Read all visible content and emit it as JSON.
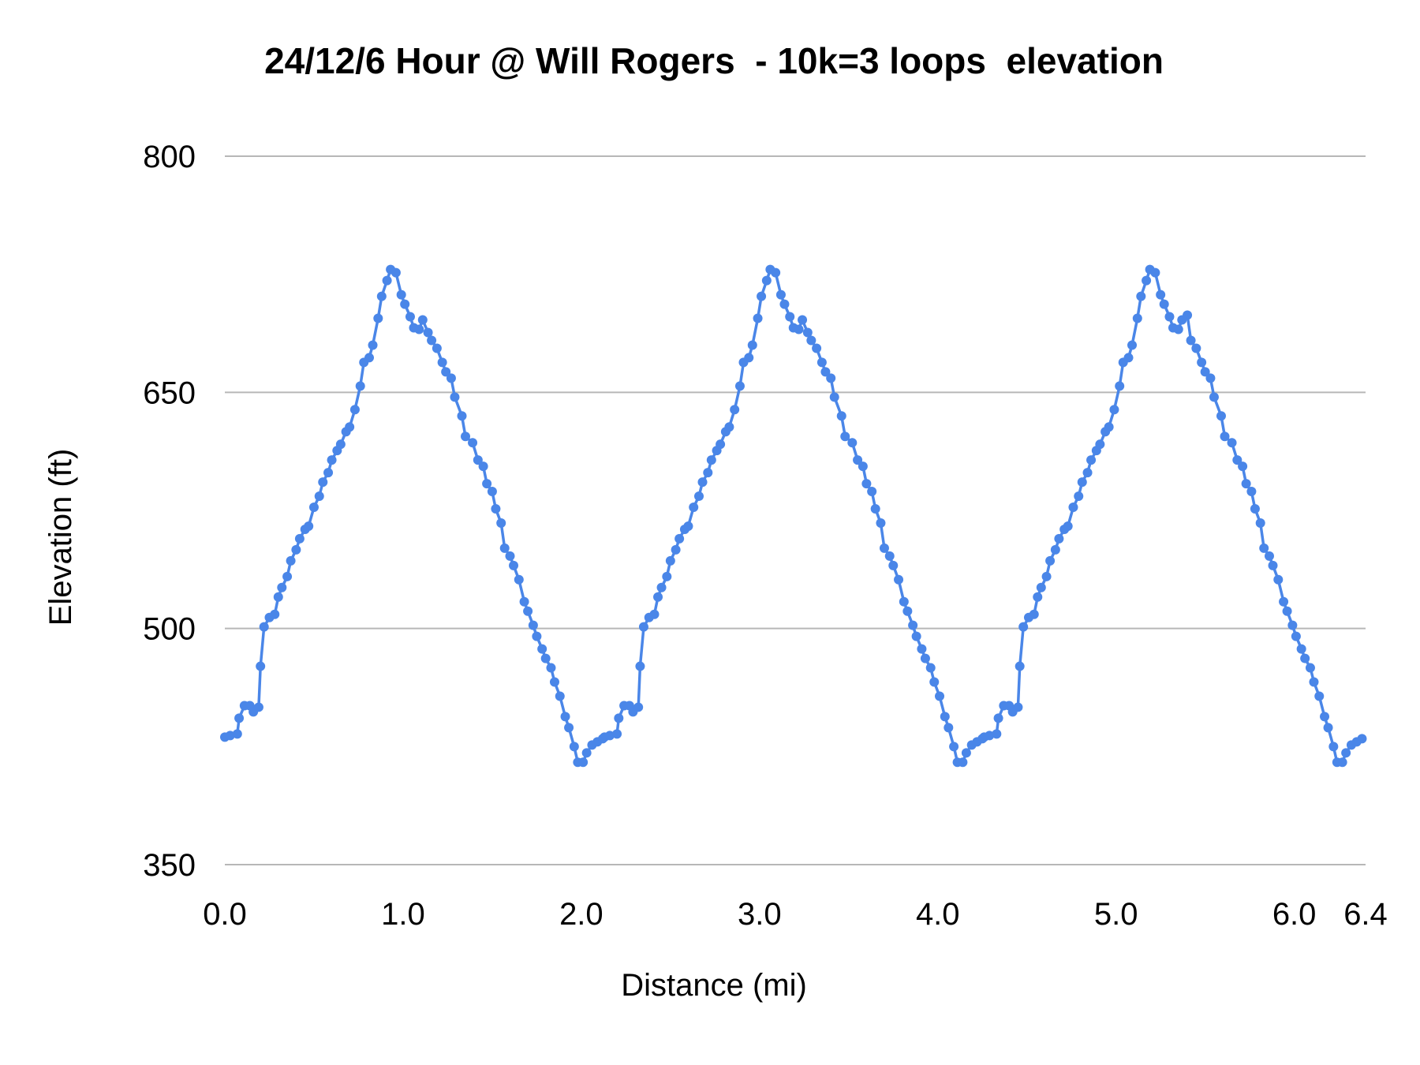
{
  "chart_data": {
    "type": "line",
    "title": "24/12/6 Hour @ Will Rogers  - 10k=3 loops  elevation",
    "xlabel": "Distance (mi)",
    "ylabel": "Elevation (ft)",
    "xlim": [
      0,
      6.4
    ],
    "ylim": [
      350,
      800
    ],
    "x_ticks": [
      "0.0",
      "1.0",
      "2.0",
      "3.0",
      "4.0",
      "5.0",
      "6.0",
      "6.4"
    ],
    "x_tick_values": [
      0,
      1,
      2,
      3,
      4,
      5,
      6,
      6.4
    ],
    "y_ticks": [
      "350",
      "500",
      "650",
      "800"
    ],
    "y_tick_values": [
      350,
      500,
      650,
      800
    ],
    "grid": "horizontal",
    "legend": "none",
    "markers": true,
    "color": "#4a86e8",
    "series": [
      {
        "x": [
          0,
          0.03,
          0.07,
          0.08,
          0.11,
          0.14,
          0.16,
          0.19,
          0.2,
          0.22,
          0.25,
          0.28,
          0.3,
          0.32,
          0.35,
          0.37,
          0.4,
          0.42,
          0.45,
          0.47,
          0.5,
          0.53,
          0.55,
          0.58,
          0.6,
          0.63,
          0.65,
          0.68,
          0.7,
          0.73,
          0.76,
          0.78,
          0.81,
          0.83,
          0.86,
          0.88,
          0.91,
          0.93,
          0.96,
          0.99,
          1.01,
          1.04,
          1.06,
          1.09,
          1.11,
          1.14,
          1.16,
          1.19,
          1.22,
          1.24,
          1.27,
          1.29,
          1.33,
          1.35,
          1.39,
          1.42,
          1.45,
          1.47,
          1.5,
          1.52,
          1.55,
          1.57,
          1.6,
          1.62,
          1.65,
          1.68,
          1.7,
          1.73,
          1.75,
          1.78,
          1.8,
          1.83,
          1.85,
          1.88,
          1.91,
          1.93,
          1.96,
          1.98,
          2.01,
          2.03,
          2.06,
          2.09,
          2.12,
          2.13,
          2.16,
          2.2,
          2.21,
          2.24,
          2.27,
          2.29,
          2.32,
          2.33,
          2.35,
          2.38,
          2.41,
          2.43,
          2.45,
          2.48,
          2.5,
          2.53,
          2.55,
          2.58,
          2.6,
          2.63,
          2.66,
          2.68,
          2.71,
          2.73,
          2.76,
          2.78,
          2.81,
          2.83,
          2.86,
          2.89,
          2.91,
          2.94,
          2.96,
          2.99,
          3.01,
          3.04,
          3.06,
          3.09,
          3.12,
          3.14,
          3.17,
          3.19,
          3.22,
          3.24,
          3.27,
          3.29,
          3.32,
          3.35,
          3.37,
          3.4,
          3.42,
          3.46,
          3.48,
          3.52,
          3.55,
          3.58,
          3.6,
          3.63,
          3.65,
          3.68,
          3.7,
          3.73,
          3.75,
          3.78,
          3.81,
          3.83,
          3.86,
          3.88,
          3.91,
          3.93,
          3.96,
          3.98,
          4.01,
          4.04,
          4.06,
          4.09,
          4.11,
          4.14,
          4.16,
          4.19,
          4.22,
          4.25,
          4.26,
          4.29,
          4.33,
          4.34,
          4.37,
          4.4,
          4.42,
          4.45,
          4.46,
          4.48,
          4.51,
          4.54,
          4.56,
          4.58,
          4.61,
          4.63,
          4.66,
          4.68,
          4.71,
          4.73,
          4.76,
          4.79,
          4.81,
          4.84,
          4.86,
          4.89,
          4.91,
          4.94,
          4.96,
          4.99,
          5.02,
          5.04,
          5.07,
          5.09,
          5.12,
          5.14,
          5.17,
          5.19,
          5.22,
          5.25,
          5.27,
          5.3,
          5.32,
          5.35,
          5.37,
          5.4,
          5.42,
          5.45,
          5.48,
          5.5,
          5.53,
          5.55,
          5.59,
          5.61,
          5.65,
          5.68,
          5.71,
          5.73,
          5.76,
          5.78,
          5.81,
          5.83,
          5.86,
          5.88,
          5.91,
          5.94,
          5.96,
          5.99,
          6.01,
          6.04,
          6.06,
          6.09,
          6.11,
          6.14,
          6.17,
          6.19,
          6.22,
          6.24,
          6.27,
          6.29,
          6.32,
          6.35,
          6.38
        ],
        "y": [
          431,
          432,
          433,
          443,
          451,
          451,
          447,
          450,
          476,
          501,
          507,
          509,
          520,
          526,
          533,
          543,
          550,
          557,
          563,
          565,
          577,
          584,
          593,
          599,
          607,
          613,
          617,
          625,
          628,
          639,
          654,
          669,
          672,
          680,
          697,
          711,
          721,
          728,
          726,
          712,
          706,
          698,
          691,
          690,
          696,
          688,
          683,
          678,
          669,
          663,
          659,
          647,
          635,
          622,
          618,
          607,
          603,
          592,
          587,
          576,
          567,
          551,
          546,
          540,
          531,
          517,
          511,
          502,
          495,
          487,
          481,
          475,
          466,
          457,
          444,
          437,
          425,
          415,
          415,
          421,
          426,
          428,
          430,
          431,
          432,
          433,
          443,
          451,
          451,
          447,
          450,
          476,
          501,
          507,
          509,
          520,
          526,
          533,
          543,
          550,
          557,
          563,
          565,
          577,
          584,
          593,
          599,
          607,
          613,
          617,
          625,
          628,
          639,
          654,
          669,
          672,
          680,
          697,
          711,
          721,
          728,
          726,
          712,
          706,
          698,
          691,
          690,
          696,
          688,
          683,
          678,
          669,
          663,
          659,
          647,
          635,
          622,
          618,
          607,
          603,
          592,
          587,
          576,
          567,
          551,
          546,
          540,
          531,
          517,
          511,
          502,
          495,
          487,
          481,
          475,
          466,
          457,
          444,
          437,
          425,
          415,
          415,
          421,
          426,
          428,
          430,
          431,
          432,
          433,
          443,
          451,
          451,
          447,
          450,
          476,
          501,
          507,
          509,
          520,
          526,
          533,
          543,
          550,
          557,
          563,
          565,
          577,
          584,
          593,
          599,
          607,
          613,
          617,
          625,
          628,
          639,
          654,
          669,
          672,
          680,
          697,
          711,
          721,
          728,
          726,
          712,
          706,
          698,
          691,
          690,
          696,
          699,
          683,
          678,
          669,
          663,
          659,
          647,
          635,
          622,
          618,
          607,
          603,
          592,
          587,
          576,
          567,
          551,
          546,
          540,
          531,
          517,
          511,
          502,
          495,
          487,
          481,
          475,
          466,
          457,
          444,
          437,
          425,
          415,
          415,
          421,
          426,
          428,
          430
        ]
      }
    ]
  }
}
